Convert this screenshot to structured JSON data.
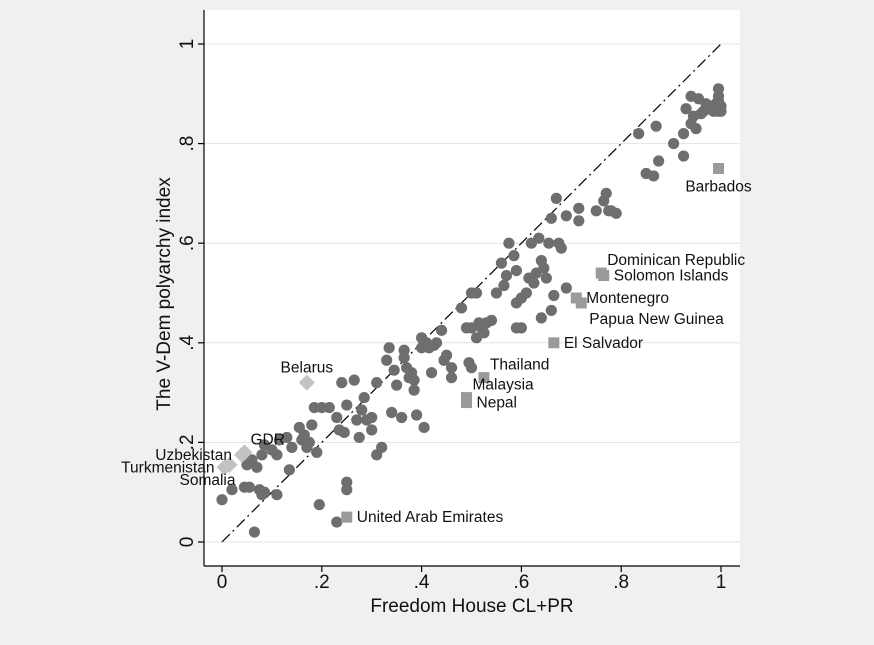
{
  "chart_data": {
    "type": "scatter",
    "xlabel": "Freedom House CL+PR",
    "ylabel": "The V-Dem polyarchy index",
    "xlim": [
      0,
      1
    ],
    "ylim": [
      0,
      1
    ],
    "xticks": [
      {
        "value": 0,
        "label": "0"
      },
      {
        "value": 0.2,
        "label": ".2"
      },
      {
        "value": 0.4,
        "label": ".4"
      },
      {
        "value": 0.6,
        "label": ".6"
      },
      {
        "value": 0.8,
        "label": ".8"
      },
      {
        "value": 1,
        "label": "1"
      }
    ],
    "yticks": [
      {
        "value": 0,
        "label": "0"
      },
      {
        "value": 0.2,
        "label": ".2"
      },
      {
        "value": 0.4,
        "label": ".4"
      },
      {
        "value": 0.6,
        "label": ".6"
      },
      {
        "value": 0.8,
        "label": ".8"
      },
      {
        "value": 1,
        "label": "1"
      }
    ],
    "grid": "horizontal",
    "reference_line": {
      "style": "dash-dot",
      "from": [
        0,
        0
      ],
      "to": [
        1,
        1
      ]
    },
    "colors": {
      "circle": "#6e6e6e",
      "square": "#9a9a9a",
      "diamond": "#c2c2c2",
      "reference": "#000000",
      "grid": "#e3e3e3",
      "plot_bg": "#ffffff",
      "page_bg": "#f0f0f0"
    },
    "series": [
      {
        "marker": "circle",
        "points": [
          [
            0.0,
            0.085
          ],
          [
            0.065,
            0.02
          ],
          [
            0.02,
            0.105
          ],
          [
            0.045,
            0.11
          ],
          [
            0.05,
            0.155
          ],
          [
            0.055,
            0.11
          ],
          [
            0.06,
            0.165
          ],
          [
            0.07,
            0.15
          ],
          [
            0.075,
            0.105
          ],
          [
            0.08,
            0.175
          ],
          [
            0.08,
            0.095
          ],
          [
            0.085,
            0.1
          ],
          [
            0.085,
            0.195
          ],
          [
            0.11,
            0.095
          ],
          [
            0.1,
            0.185
          ],
          [
            0.11,
            0.175
          ],
          [
            0.115,
            0.205
          ],
          [
            0.13,
            0.21
          ],
          [
            0.14,
            0.19
          ],
          [
            0.135,
            0.145
          ],
          [
            0.155,
            0.23
          ],
          [
            0.16,
            0.205
          ],
          [
            0.165,
            0.215
          ],
          [
            0.17,
            0.19
          ],
          [
            0.175,
            0.2
          ],
          [
            0.18,
            0.235
          ],
          [
            0.185,
            0.27
          ],
          [
            0.19,
            0.18
          ],
          [
            0.2,
            0.27
          ],
          [
            0.195,
            0.075
          ],
          [
            0.215,
            0.27
          ],
          [
            0.23,
            0.25
          ],
          [
            0.235,
            0.225
          ],
          [
            0.24,
            0.32
          ],
          [
            0.25,
            0.275
          ],
          [
            0.245,
            0.22
          ],
          [
            0.25,
            0.12
          ],
          [
            0.25,
            0.105
          ],
          [
            0.23,
            0.04
          ],
          [
            0.265,
            0.325
          ],
          [
            0.27,
            0.245
          ],
          [
            0.275,
            0.21
          ],
          [
            0.285,
            0.29
          ],
          [
            0.28,
            0.265
          ],
          [
            0.29,
            0.245
          ],
          [
            0.3,
            0.25
          ],
          [
            0.3,
            0.225
          ],
          [
            0.31,
            0.32
          ],
          [
            0.31,
            0.175
          ],
          [
            0.32,
            0.19
          ],
          [
            0.33,
            0.365
          ],
          [
            0.335,
            0.39
          ],
          [
            0.34,
            0.26
          ],
          [
            0.345,
            0.345
          ],
          [
            0.35,
            0.315
          ],
          [
            0.36,
            0.25
          ],
          [
            0.365,
            0.37
          ],
          [
            0.365,
            0.385
          ],
          [
            0.37,
            0.35
          ],
          [
            0.375,
            0.33
          ],
          [
            0.38,
            0.34
          ],
          [
            0.385,
            0.325
          ],
          [
            0.385,
            0.305
          ],
          [
            0.39,
            0.255
          ],
          [
            0.4,
            0.41
          ],
          [
            0.4,
            0.39
          ],
          [
            0.405,
            0.23
          ],
          [
            0.41,
            0.4
          ],
          [
            0.415,
            0.39
          ],
          [
            0.42,
            0.34
          ],
          [
            0.425,
            0.395
          ],
          [
            0.43,
            0.4
          ],
          [
            0.44,
            0.425
          ],
          [
            0.445,
            0.365
          ],
          [
            0.45,
            0.375
          ],
          [
            0.46,
            0.33
          ],
          [
            0.46,
            0.35
          ],
          [
            0.48,
            0.47
          ],
          [
            0.49,
            0.43
          ],
          [
            0.495,
            0.36
          ],
          [
            0.5,
            0.5
          ],
          [
            0.5,
            0.35
          ],
          [
            0.5,
            0.43
          ],
          [
            0.51,
            0.5
          ],
          [
            0.51,
            0.41
          ],
          [
            0.515,
            0.44
          ],
          [
            0.52,
            0.43
          ],
          [
            0.525,
            0.42
          ],
          [
            0.53,
            0.44
          ],
          [
            0.54,
            0.445
          ],
          [
            0.55,
            0.5
          ],
          [
            0.56,
            0.56
          ],
          [
            0.565,
            0.515
          ],
          [
            0.57,
            0.535
          ],
          [
            0.575,
            0.6
          ],
          [
            0.585,
            0.575
          ],
          [
            0.59,
            0.545
          ],
          [
            0.59,
            0.48
          ],
          [
            0.59,
            0.43
          ],
          [
            0.6,
            0.43
          ],
          [
            0.6,
            0.49
          ],
          [
            0.61,
            0.5
          ],
          [
            0.615,
            0.53
          ],
          [
            0.62,
            0.6
          ],
          [
            0.625,
            0.52
          ],
          [
            0.63,
            0.54
          ],
          [
            0.635,
            0.61
          ],
          [
            0.64,
            0.565
          ],
          [
            0.64,
            0.45
          ],
          [
            0.645,
            0.55
          ],
          [
            0.65,
            0.53
          ],
          [
            0.655,
            0.6
          ],
          [
            0.66,
            0.65
          ],
          [
            0.66,
            0.465
          ],
          [
            0.665,
            0.495
          ],
          [
            0.67,
            0.69
          ],
          [
            0.675,
            0.6
          ],
          [
            0.68,
            0.59
          ],
          [
            0.69,
            0.655
          ],
          [
            0.69,
            0.51
          ],
          [
            0.715,
            0.67
          ],
          [
            0.715,
            0.645
          ],
          [
            0.75,
            0.665
          ],
          [
            0.765,
            0.685
          ],
          [
            0.77,
            0.7
          ],
          [
            0.775,
            0.665
          ],
          [
            0.78,
            0.665
          ],
          [
            0.79,
            0.66
          ],
          [
            0.835,
            0.82
          ],
          [
            0.85,
            0.74
          ],
          [
            0.865,
            0.735
          ],
          [
            0.87,
            0.835
          ],
          [
            0.875,
            0.765
          ],
          [
            0.905,
            0.8
          ],
          [
            0.925,
            0.82
          ],
          [
            0.925,
            0.775
          ],
          [
            0.93,
            0.87
          ],
          [
            0.94,
            0.895
          ],
          [
            0.94,
            0.84
          ],
          [
            0.945,
            0.855
          ],
          [
            0.95,
            0.83
          ],
          [
            0.955,
            0.89
          ],
          [
            0.96,
            0.86
          ],
          [
            0.965,
            0.865
          ],
          [
            0.97,
            0.88
          ],
          [
            0.975,
            0.87
          ],
          [
            0.98,
            0.875
          ],
          [
            0.985,
            0.865
          ],
          [
            0.99,
            0.88
          ],
          [
            0.995,
            0.91
          ],
          [
            0.995,
            0.895
          ],
          [
            0.995,
            0.885
          ],
          [
            1.0,
            0.875
          ],
          [
            1.0,
            0.865
          ],
          [
            0.995,
            0.865
          ],
          [
            0.99,
            0.87
          ]
        ]
      },
      {
        "marker": "square",
        "points": [
          {
            "x": 0.995,
            "y": 0.75,
            "label": "Barbados",
            "anchor": "below"
          },
          {
            "x": 0.76,
            "y": 0.54,
            "label": "Dominican Republic",
            "anchor": "above-right"
          },
          {
            "x": 0.765,
            "y": 0.535,
            "label": "Solomon Islands",
            "anchor": "right"
          },
          {
            "x": 0.71,
            "y": 0.49,
            "label": "Montenegro",
            "anchor": "right"
          },
          {
            "x": 0.72,
            "y": 0.48,
            "label": "Papua New Guinea",
            "anchor": "below-right"
          },
          {
            "x": 0.665,
            "y": 0.4,
            "label": "El Salvador",
            "anchor": "right"
          },
          {
            "x": 0.525,
            "y": 0.33,
            "label": "Thailand",
            "anchor": "above-right"
          },
          {
            "x": 0.49,
            "y": 0.29,
            "label": "Malaysia",
            "anchor": "above-right"
          },
          {
            "x": 0.49,
            "y": 0.28,
            "label": "Nepal",
            "anchor": "right"
          },
          {
            "x": 0.25,
            "y": 0.05,
            "label": "United Arab Emirates",
            "anchor": "right"
          }
        ]
      },
      {
        "marker": "diamond",
        "points": [
          {
            "x": 0.17,
            "y": 0.32,
            "label": "Belarus",
            "anchor": "above"
          },
          {
            "x": 0.045,
            "y": 0.18,
            "label": "GDR",
            "anchor": "above-right"
          },
          {
            "x": 0.04,
            "y": 0.175,
            "label": "Uzbekistan",
            "anchor": "left"
          },
          {
            "x": 0.005,
            "y": 0.15,
            "label": "Turkmenistan",
            "anchor": "left"
          },
          {
            "x": 0.015,
            "y": 0.155,
            "label": "Somalia",
            "anchor": "below-left"
          }
        ]
      }
    ]
  }
}
